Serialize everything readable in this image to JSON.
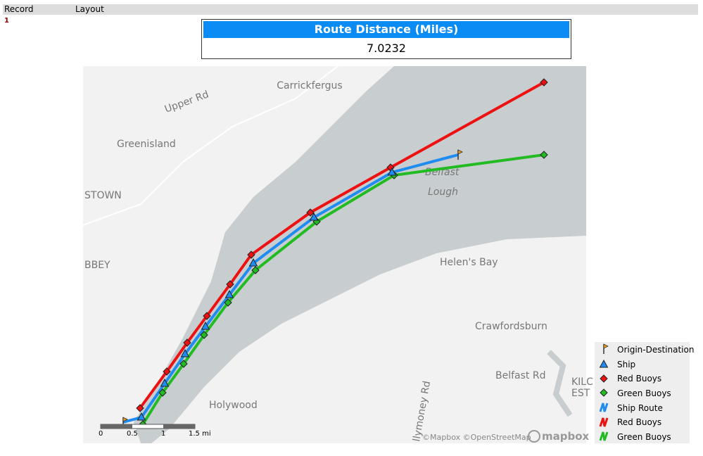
{
  "header": {
    "columns": [
      "Record",
      "Layout"
    ]
  },
  "record": {
    "id": "1"
  },
  "panel": {
    "title": "Route Distance (Miles)",
    "value": "7.0232"
  },
  "map": {
    "places": [
      "Carrickfergus",
      "Upper Rd",
      "Greenisland",
      "STOWN",
      "BBEY",
      "Belfast",
      "Lough",
      "Helen's Bay",
      "Crawfordsburn",
      "Belfast Rd",
      "KILC",
      "EST",
      "Holywood",
      "llymoney Rd"
    ],
    "scale": [
      "0",
      "0.5",
      "1",
      "1.5 mi"
    ],
    "attribution": "©Mapbox ©OpenStreetMap",
    "brand": "mapbox"
  },
  "legend": {
    "items": [
      "Origin-Destination",
      "Ship",
      "Red Buoys",
      "Green Buoys",
      "Ship Route",
      "Red Buoys",
      "Green Buoys"
    ]
  }
}
